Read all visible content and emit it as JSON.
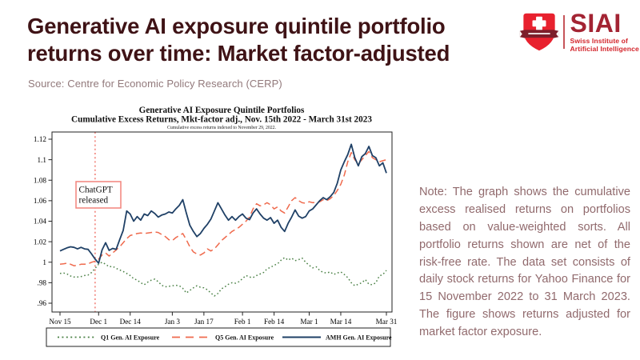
{
  "header": {
    "title_line1": "Generative AI exposure quintile portfolio",
    "title_line2": "returns over time: Market factor-adjusted",
    "source": "Source: Centre for Economic Policy Research (CERP)"
  },
  "logo": {
    "acronym": "SIAI",
    "subtitle_line1": "Swiss Institute of",
    "subtitle_line2": "Artificial Intelligence"
  },
  "note": {
    "text": "Note: The graph shows the cumulative excess realised returns on portfolios based on value-weighted sorts. All portfolio returns shown are net of the risk-free rate. The data set consists of daily stock returns for Yahoo Finance for 15 November 2022 to 31 March 2023. The figure shows returns adjusted for market factor exposure."
  },
  "colors": {
    "title_maroon": "#3f1316",
    "source_color": "#92797b",
    "note_color": "#916a6d",
    "logo_red": "#e8212e",
    "logo_dark_red": "#a32433",
    "logo_banner": "#7d1f2b",
    "event_line_color": "#f2837b",
    "axis_color": "#222222"
  },
  "chart_data": {
    "type": "line",
    "title": "Generative AI Exposure Quintile Portfolios",
    "subtitle": "Cumulative Excess Returns, Mkt-factor adj., Nov. 15th 2022 - March 31st 2023",
    "caption": "Cumulative excess returns indexed to November 29, 2022.",
    "grid": false,
    "legend_position": "bottom",
    "ylim": [
      0.96,
      1.12
    ],
    "y_ticks": [
      0.96,
      0.98,
      1.0,
      1.02,
      1.04,
      1.06,
      1.08,
      1.1,
      1.12
    ],
    "y_tick_labels": [
      ".96",
      ".98",
      "1",
      "1.02",
      "1.04",
      "1.06",
      "1.08",
      "1.1",
      "1.12"
    ],
    "x_tick_labels": [
      "Nov 15",
      "Dec 1",
      "Dec 14",
      "Jan 3",
      "Jan 17",
      "Feb 1",
      "Feb 14",
      "Mar 1",
      "Mar 14",
      "Mar 31"
    ],
    "x_tick_indices": [
      0,
      11,
      20,
      32,
      41,
      52,
      61,
      71,
      80,
      93
    ],
    "n_points": 94,
    "event_line": {
      "index": 10,
      "label_line1": "ChatGPT",
      "label_line2": "released",
      "color": "#f2837b"
    },
    "series": [
      {
        "name": "Q1 Gen. AI Exposure",
        "color": "#4b8146",
        "style": "dotted",
        "values": [
          0.989,
          0.9895,
          0.9885,
          0.9865,
          0.9855,
          0.9855,
          0.986,
          0.987,
          0.9875,
          0.99,
          0.994,
          0.998,
          1.0,
          0.998,
          0.9955,
          0.996,
          0.994,
          0.9925,
          0.991,
          0.989,
          0.987,
          0.984,
          0.9825,
          0.98,
          0.978,
          0.9805,
          0.9825,
          0.9835,
          0.981,
          0.9775,
          0.976,
          0.9765,
          0.977,
          0.9775,
          0.977,
          0.9745,
          0.97,
          0.9725,
          0.975,
          0.977,
          0.9755,
          0.975,
          0.973,
          0.97,
          0.967,
          0.9695,
          0.974,
          0.976,
          0.9785,
          0.98,
          0.9795,
          0.981,
          0.984,
          0.987,
          0.9855,
          0.985,
          0.987,
          0.9885,
          0.99,
          0.9935,
          0.995,
          0.997,
          0.9985,
          1.002,
          1.0045,
          1.002,
          1.004,
          1.0015,
          1.0025,
          1.004,
          1.0,
          0.997,
          0.9945,
          0.9955,
          0.992,
          0.99,
          0.9895,
          0.9905,
          0.988,
          0.9895,
          0.9905,
          0.988,
          0.985,
          0.98,
          0.977,
          0.9785,
          0.98,
          0.983,
          0.9785,
          0.978,
          0.98,
          0.9865,
          0.988,
          0.992
        ]
      },
      {
        "name": "Q5 Gen. AI Exposure",
        "color": "#ef6a4d",
        "style": "dashed",
        "values": [
          0.998,
          0.9985,
          0.999,
          0.998,
          0.9965,
          0.997,
          0.998,
          0.998,
          0.9985,
          1.0,
          1.001,
          1.003,
          1.007,
          1.009,
          1.006,
          1.009,
          1.012,
          1.015,
          1.019,
          1.023,
          1.026,
          1.027,
          1.028,
          1.0285,
          1.028,
          1.0285,
          1.029,
          1.0295,
          1.029,
          1.027,
          1.025,
          1.022,
          1.021,
          1.024,
          1.026,
          1.028,
          1.022,
          1.015,
          1.01,
          1.008,
          1.007,
          1.009,
          1.013,
          1.011,
          1.013,
          1.017,
          1.021,
          1.024,
          1.027,
          1.03,
          1.032,
          1.034,
          1.037,
          1.04,
          1.044,
          1.052,
          1.057,
          1.055,
          1.056,
          1.058,
          1.056,
          1.052,
          1.054,
          1.05,
          1.048,
          1.054,
          1.06,
          1.063,
          1.06,
          1.058,
          1.0575,
          1.059,
          1.058,
          1.0585,
          1.059,
          1.061,
          1.06,
          1.062,
          1.065,
          1.07,
          1.076,
          1.085,
          1.098,
          1.107,
          1.1,
          1.096,
          1.1,
          1.104,
          1.108,
          1.102,
          1.1,
          1.098,
          1.099,
          1.1
        ]
      },
      {
        "name": "AMH Gen. AI Exposure",
        "color": "#1f4066",
        "style": "solid",
        "values": [
          1.011,
          1.0125,
          1.014,
          1.015,
          1.0145,
          1.013,
          1.0145,
          1.013,
          1.0125,
          1.008,
          1.003,
          0.999,
          1.012,
          1.019,
          1.0115,
          1.0135,
          1.0125,
          1.022,
          1.031,
          1.05,
          1.047,
          1.04,
          1.0445,
          1.041,
          1.047,
          1.0455,
          1.05,
          1.0475,
          1.044,
          1.046,
          1.047,
          1.049,
          1.048,
          1.052,
          1.0555,
          1.061,
          1.048,
          1.036,
          1.03,
          1.025,
          1.028,
          1.033,
          1.037,
          1.042,
          1.05,
          1.058,
          1.052,
          1.046,
          1.041,
          1.0445,
          1.041,
          1.0445,
          1.047,
          1.043,
          1.0415,
          1.048,
          1.052,
          1.047,
          1.043,
          1.041,
          1.0435,
          1.038,
          1.041,
          1.034,
          1.03,
          1.038,
          1.044,
          1.051,
          1.045,
          1.043,
          1.0445,
          1.05,
          1.052,
          1.056,
          1.06,
          1.063,
          1.061,
          1.064,
          1.068,
          1.077,
          1.09,
          1.098,
          1.105,
          1.115,
          1.102,
          1.094,
          1.103,
          1.106,
          1.113,
          1.104,
          1.102,
          1.094,
          1.097,
          1.087
        ]
      }
    ]
  }
}
